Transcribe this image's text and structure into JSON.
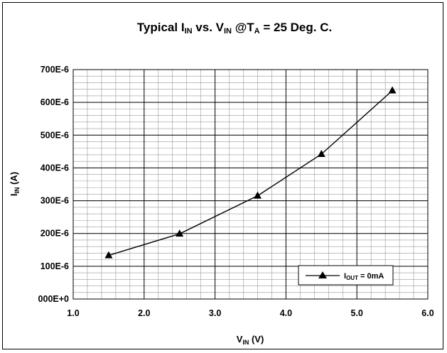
{
  "chart_data": {
    "type": "line",
    "title": {
      "prefix": "Typical I",
      "sub1": "IN",
      "mid1": " vs. V",
      "sub2": "IN",
      "mid2": " @T",
      "sub3": "A",
      "suffix": " = 25 Deg. C."
    },
    "xlabel": {
      "main": "V",
      "sub": "IN",
      "suffix": " (V)"
    },
    "ylabel": {
      "main": "I",
      "sub": "IN",
      "suffix": " (A)"
    },
    "xlim": [
      1.0,
      6.0
    ],
    "ylim": [
      0,
      0.0007
    ],
    "x_ticks": [
      "1.0",
      "2.0",
      "3.0",
      "4.0",
      "5.0",
      "6.0"
    ],
    "y_ticks": [
      "000E+0",
      "100E-6",
      "200E-6",
      "300E-6",
      "400E-6",
      "500E-6",
      "600E-6",
      "700E-6"
    ],
    "grid": true,
    "legend_position": "bottom-right",
    "series": [
      {
        "name": {
          "main": "I",
          "sub": "OUT",
          "suffix": " = 0mA"
        },
        "marker": "triangle",
        "color": "#000000",
        "x": [
          1.5,
          2.5,
          3.6,
          4.5,
          5.5
        ],
        "y": [
          0.000133,
          0.000199,
          0.000315,
          0.000442,
          0.000636
        ]
      }
    ]
  }
}
